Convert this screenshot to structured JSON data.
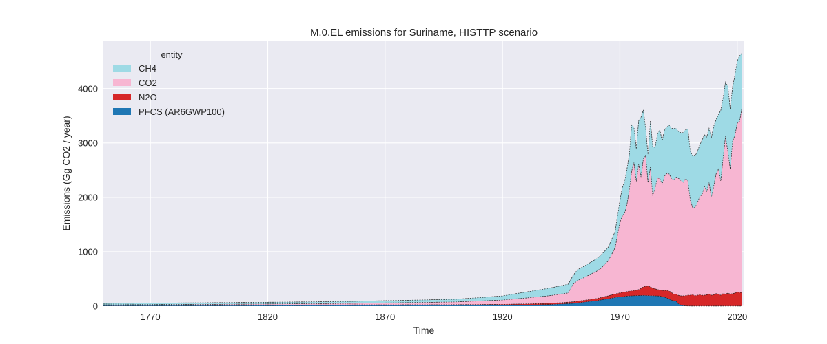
{
  "chart_data": {
    "type": "area",
    "title": "M.0.EL emissions for Suriname, HISTTP scenario",
    "xlabel": "Time",
    "ylabel": "Emissions (Gg CO2 / year)",
    "xlim": [
      1750,
      2023
    ],
    "ylim": [
      0,
      4870
    ],
    "xticks": [
      1770,
      1820,
      1870,
      1920,
      1970,
      2020
    ],
    "yticks": [
      0,
      1000,
      2000,
      3000,
      4000
    ],
    "grid": true,
    "stacked": true,
    "legend": {
      "title": "entity",
      "placement": "upper-left",
      "entries": [
        "CH4",
        "CO2",
        "N2O",
        "PFCS (AR6GWP100)"
      ]
    },
    "x": [
      1750,
      1800,
      1850,
      1900,
      1920,
      1930,
      1940,
      1948,
      1950,
      1952,
      1955,
      1958,
      1960,
      1962,
      1965,
      1968,
      1970,
      1971,
      1972,
      1973,
      1974,
      1975,
      1976,
      1977,
      1978,
      1979,
      1980,
      1981,
      1982,
      1983,
      1984,
      1985,
      1986,
      1987,
      1988,
      1989,
      1990,
      1991,
      1992,
      1993,
      1994,
      1995,
      1996,
      1997,
      1998,
      1999,
      2000,
      2001,
      2002,
      2003,
      2004,
      2005,
      2006,
      2007,
      2008,
      2009,
      2010,
      2011,
      2012,
      2013,
      2014,
      2015,
      2016,
      2017,
      2018,
      2019,
      2020,
      2021,
      2022
    ],
    "series": [
      {
        "name": "PFCS (AR6GWP100)",
        "color": "#1f77b4",
        "values": [
          10,
          12,
          14,
          15,
          18,
          22,
          30,
          45,
          50,
          60,
          75,
          90,
          100,
          115,
          135,
          160,
          170,
          175,
          180,
          185,
          188,
          190,
          192,
          194,
          195,
          196,
          197,
          196,
          195,
          194,
          192,
          190,
          188,
          186,
          175,
          165,
          150,
          130,
          110,
          100,
          90,
          40,
          20,
          10,
          5,
          2,
          2,
          1,
          1,
          1,
          1,
          1,
          1,
          1,
          1,
          1,
          1,
          1,
          1,
          1,
          1,
          1,
          1,
          1,
          1,
          1,
          1,
          1,
          1
        ]
      },
      {
        "name": "N2O",
        "color": "#d62728",
        "values": [
          5,
          7,
          9,
          12,
          15,
          18,
          22,
          28,
          30,
          32,
          35,
          38,
          40,
          45,
          55,
          65,
          75,
          78,
          80,
          85,
          90,
          92,
          95,
          100,
          110,
          130,
          160,
          170,
          175,
          160,
          140,
          130,
          120,
          110,
          115,
          125,
          140,
          150,
          140,
          120,
          130,
          160,
          170,
          180,
          190,
          200,
          200,
          210,
          190,
          200,
          210,
          200,
          200,
          210,
          220,
          200,
          210,
          230,
          220,
          200,
          230,
          220,
          240,
          220,
          230,
          240,
          260,
          250,
          250
        ]
      },
      {
        "name": "CO2",
        "color": "#f7b6d2",
        "values": [
          10,
          15,
          25,
          50,
          80,
          110,
          140,
          170,
          320,
          380,
          420,
          470,
          500,
          540,
          640,
          850,
          1300,
          1400,
          1450,
          1600,
          1850,
          2200,
          2350,
          2000,
          2300,
          2050,
          2350,
          2400,
          1900,
          2200,
          1700,
          1850,
          2050,
          2050,
          1950,
          2100,
          2150,
          2150,
          2100,
          2100,
          2150,
          2150,
          2120,
          2080,
          2150,
          2100,
          1750,
          1600,
          1620,
          1700,
          1800,
          1850,
          2000,
          1900,
          2050,
          1800,
          2000,
          2200,
          2300,
          2100,
          2500,
          2900,
          2600,
          2300,
          2800,
          2900,
          3100,
          3150,
          3400
        ]
      },
      {
        "name": "CH4",
        "color": "#9edae5",
        "values": [
          25,
          30,
          35,
          50,
          75,
          110,
          140,
          160,
          160,
          200,
          210,
          220,
          230,
          240,
          250,
          300,
          400,
          520,
          580,
          650,
          650,
          850,
          650,
          600,
          800,
          1100,
          900,
          500,
          500,
          850,
          900,
          750,
          800,
          900,
          800,
          850,
          850,
          900,
          920,
          950,
          900,
          860,
          880,
          920,
          900,
          950,
          900,
          950,
          950,
          940,
          950,
          1000,
          950,
          1000,
          1000,
          1100,
          1100,
          1000,
          1000,
          1300,
          1100,
          1000,
          1200,
          1100,
          1000,
          1100,
          1150,
          1200,
          1000
        ]
      }
    ]
  }
}
